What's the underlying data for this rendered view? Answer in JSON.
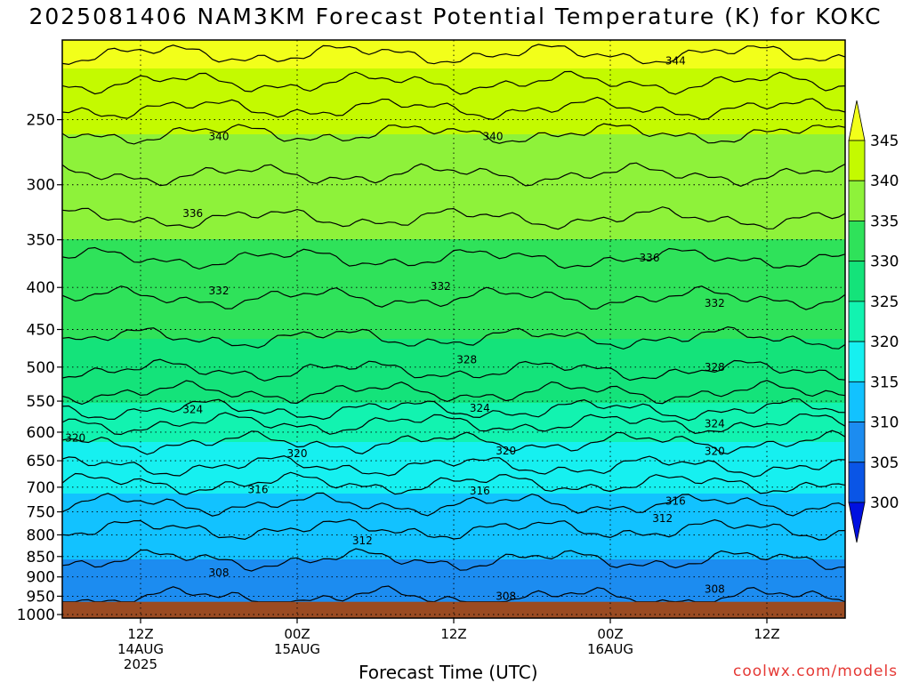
{
  "chart_data": {
    "type": "heatmap",
    "title": "2025081406 NAM3KM Forecast Potential Temperature (K) for KOKC",
    "xlabel": "Forecast Time (UTC)",
    "ylabel": "",
    "credit": "coolwx.com/models",
    "x_ticks": [
      {
        "line1": "12Z",
        "line2": "14AUG",
        "line3": "2025",
        "hours": 6
      },
      {
        "line1": "00Z",
        "line2": "15AUG",
        "line3": "",
        "hours": 18
      },
      {
        "line1": "12Z",
        "line2": "",
        "line3": "",
        "hours": 30
      },
      {
        "line1": "00Z",
        "line2": "16AUG",
        "line3": "",
        "hours": 42
      },
      {
        "line1": "12Z",
        "line2": "",
        "line3": "",
        "hours": 54
      }
    ],
    "x_range_hours": [
      0,
      60
    ],
    "y_axis": "pressure (hPa), log scale",
    "y_ticks": [
      250,
      300,
      350,
      400,
      450,
      500,
      550,
      600,
      650,
      700,
      750,
      800,
      850,
      900,
      950,
      1000
    ],
    "ylim": [
      200,
      1010
    ],
    "surface_pressure_hpa": 965,
    "grid": true,
    "colorbar": {
      "unit": "K",
      "levels": [
        300,
        305,
        310,
        315,
        320,
        325,
        330,
        335,
        340,
        345
      ],
      "colors": [
        "#0010e0",
        "#0a55e6",
        "#1c8cf0",
        "#12c2ff",
        "#16f0f0",
        "#12f3b0",
        "#14e37a",
        "#2fe25a",
        "#8ef23a",
        "#c4fa00",
        "#f2ff1a"
      ]
    },
    "theta_profile": [
      {
        "p": 200,
        "theta": 347
      },
      {
        "p": 230,
        "theta": 343.5
      },
      {
        "p": 260,
        "theta": 340
      },
      {
        "p": 300,
        "theta": 337.5
      },
      {
        "p": 340,
        "theta": 335.5
      },
      {
        "p": 400,
        "theta": 332.5
      },
      {
        "p": 450,
        "theta": 330.5
      },
      {
        "p": 500,
        "theta": 328.3
      },
      {
        "p": 550,
        "theta": 325.2
      },
      {
        "p": 600,
        "theta": 320.8
      },
      {
        "p": 650,
        "theta": 318.6
      },
      {
        "p": 700,
        "theta": 315.6
      },
      {
        "p": 750,
        "theta": 313.3
      },
      {
        "p": 800,
        "theta": 311.6
      },
      {
        "p": 850,
        "theta": 310.2
      },
      {
        "p": 900,
        "theta": 309
      },
      {
        "p": 965,
        "theta": 307.8
      }
    ],
    "contour_levels": [
      306,
      308,
      310,
      312,
      314,
      316,
      318,
      320,
      322,
      324,
      326,
      328,
      330,
      332,
      334,
      336,
      338,
      340,
      342,
      344,
      346
    ],
    "contour_labels": [
      {
        "value": "344",
        "hours": 47,
        "p": 212
      },
      {
        "value": "340",
        "hours": 12,
        "p": 262
      },
      {
        "value": "340",
        "hours": 33,
        "p": 262
      },
      {
        "value": "336",
        "hours": 10,
        "p": 325
      },
      {
        "value": "336",
        "hours": 45,
        "p": 368
      },
      {
        "value": "332",
        "hours": 12,
        "p": 404
      },
      {
        "value": "332",
        "hours": 29,
        "p": 399
      },
      {
        "value": "332",
        "hours": 50,
        "p": 418
      },
      {
        "value": "328",
        "hours": 31,
        "p": 490
      },
      {
        "value": "328",
        "hours": 50,
        "p": 500
      },
      {
        "value": "324",
        "hours": 10,
        "p": 563
      },
      {
        "value": "324",
        "hours": 32,
        "p": 561
      },
      {
        "value": "324",
        "hours": 50,
        "p": 586
      },
      {
        "value": "320",
        "hours": 1,
        "p": 610
      },
      {
        "value": "320",
        "hours": 18,
        "p": 637
      },
      {
        "value": "320",
        "hours": 34,
        "p": 632
      },
      {
        "value": "320",
        "hours": 50,
        "p": 633
      },
      {
        "value": "316",
        "hours": 15,
        "p": 705
      },
      {
        "value": "316",
        "hours": 32,
        "p": 707
      },
      {
        "value": "316",
        "hours": 47,
        "p": 728
      },
      {
        "value": "312",
        "hours": 23,
        "p": 813
      },
      {
        "value": "312",
        "hours": 46,
        "p": 764
      },
      {
        "value": "308",
        "hours": 12,
        "p": 890
      },
      {
        "value": "308",
        "hours": 34,
        "p": 950
      },
      {
        "value": "308",
        "hours": 50,
        "p": 932
      }
    ],
    "colors": {
      "ground": "#9a4b22",
      "frame": "#000000",
      "contour": "#000000",
      "credit": "#e53935"
    }
  }
}
